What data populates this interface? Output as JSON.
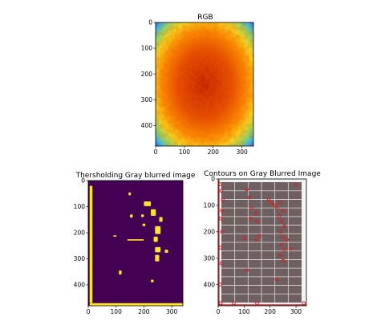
{
  "chart_data": [
    {
      "type": "heatmap",
      "title": "RGB",
      "colormap": "jet",
      "xlim": [
        0,
        340
      ],
      "ylim": [
        480,
        0
      ],
      "xticks": [
        0,
        100,
        200,
        300
      ],
      "yticks": [
        0,
        100,
        200,
        300,
        400
      ],
      "grid": false,
      "content": "thermal heatmap of solar panel; cool blue border, hot red/orange interior"
    },
    {
      "type": "heatmap",
      "title": "Thersholding Gray blurred image",
      "colormap": "viridis",
      "xlim": [
        0,
        340
      ],
      "ylim": [
        480,
        0
      ],
      "xticks": [
        0,
        100,
        200,
        300
      ],
      "yticks": [
        0,
        100,
        200,
        300,
        400
      ],
      "grid": false,
      "background_color": "#440154",
      "foreground_color": "#fde725",
      "blobs": [
        {
          "x": 5,
          "y": 20,
          "w": 10,
          "h": 450
        },
        {
          "x": 145,
          "y": 45,
          "w": 8,
          "h": 12
        },
        {
          "x": 150,
          "y": 130,
          "w": 10,
          "h": 12
        },
        {
          "x": 200,
          "y": 80,
          "w": 25,
          "h": 18
        },
        {
          "x": 225,
          "y": 110,
          "w": 18,
          "h": 25
        },
        {
          "x": 190,
          "y": 130,
          "w": 10,
          "h": 10
        },
        {
          "x": 255,
          "y": 140,
          "w": 12,
          "h": 18
        },
        {
          "x": 195,
          "y": 165,
          "w": 10,
          "h": 10
        },
        {
          "x": 240,
          "y": 175,
          "w": 20,
          "h": 30
        },
        {
          "x": 90,
          "y": 210,
          "w": 12,
          "h": 5
        },
        {
          "x": 140,
          "y": 225,
          "w": 60,
          "h": 5
        },
        {
          "x": 235,
          "y": 215,
          "w": 15,
          "h": 20
        },
        {
          "x": 240,
          "y": 255,
          "w": 20,
          "h": 20
        },
        {
          "x": 275,
          "y": 265,
          "w": 12,
          "h": 12
        },
        {
          "x": 240,
          "y": 285,
          "w": 15,
          "h": 25
        },
        {
          "x": 110,
          "y": 345,
          "w": 10,
          "h": 15
        },
        {
          "x": 225,
          "y": 380,
          "w": 10,
          "h": 10
        },
        {
          "x": 5,
          "y": 470,
          "w": 335,
          "h": 10
        }
      ]
    },
    {
      "type": "image",
      "title": "Contours on Gray Blurred Image",
      "xlim": [
        0,
        340
      ],
      "ylim": [
        480,
        0
      ],
      "xticks": [
        0,
        100,
        200,
        300
      ],
      "yticks": [
        0,
        100,
        200,
        300,
        400
      ],
      "grid": false,
      "panel_color": "#6e6060",
      "cell_line_color": "#dcdcdc",
      "contour_color": "#d42020",
      "cell_columns": 6,
      "cell_rows": 14,
      "contour_points": [
        [
          8,
          20
        ],
        [
          12,
          45
        ],
        [
          18,
          80
        ],
        [
          14,
          120
        ],
        [
          10,
          150
        ],
        [
          15,
          200
        ],
        [
          9,
          260
        ],
        [
          12,
          320
        ],
        [
          8,
          400
        ],
        [
          10,
          470
        ],
        [
          110,
          40
        ],
        [
          120,
          70
        ],
        [
          130,
          110
        ],
        [
          145,
          130
        ],
        [
          125,
          150
        ],
        [
          150,
          160
        ],
        [
          195,
          80
        ],
        [
          205,
          90
        ],
        [
          215,
          100
        ],
        [
          225,
          110
        ],
        [
          240,
          90
        ],
        [
          250,
          120
        ],
        [
          235,
          140
        ],
        [
          245,
          160
        ],
        [
          255,
          180
        ],
        [
          240,
          200
        ],
        [
          250,
          220
        ],
        [
          265,
          230
        ],
        [
          245,
          250
        ],
        [
          255,
          270
        ],
        [
          240,
          290
        ],
        [
          250,
          310
        ],
        [
          100,
          225
        ],
        [
          145,
          230
        ],
        [
          160,
          215
        ],
        [
          225,
          380
        ],
        [
          110,
          345
        ],
        [
          280,
          265
        ],
        [
          300,
          20
        ],
        [
          330,
          470
        ],
        [
          150,
          470
        ],
        [
          60,
          470
        ]
      ]
    }
  ]
}
